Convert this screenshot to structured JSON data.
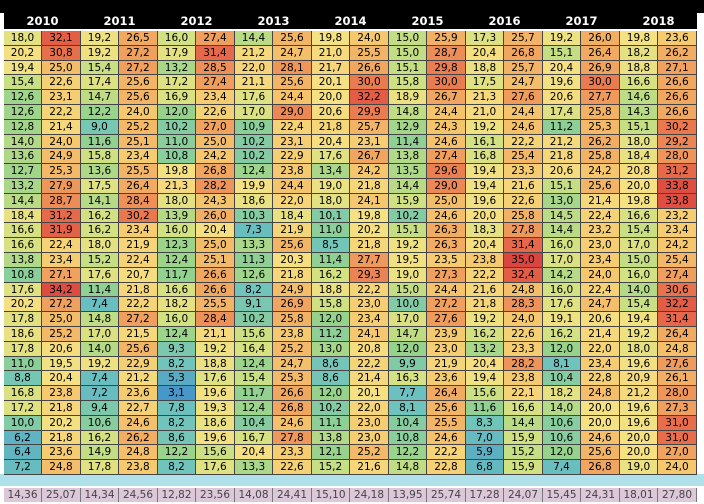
{
  "years": [
    "2010",
    "2011",
    "2012",
    "2013",
    "2014",
    "2015",
    "2016",
    "2017",
    "2018"
  ],
  "rows": [
    [
      [
        "18,0",
        "32,1"
      ],
      [
        "19,2",
        "26,5"
      ],
      [
        "16,0",
        "27,4"
      ],
      [
        "14,4",
        "25,6"
      ],
      [
        "19,8",
        "24,0"
      ],
      [
        "15,0",
        "25,9"
      ],
      [
        "17,3",
        "25,7"
      ],
      [
        "19,2",
        "26,0"
      ],
      [
        "19,8",
        "23,6"
      ]
    ],
    [
      [
        "20,2",
        "30,8"
      ],
      [
        "19,2",
        "27,2"
      ],
      [
        "17,9",
        "31,4"
      ],
      [
        "21,2",
        "24,7"
      ],
      [
        "21,0",
        "25,5"
      ],
      [
        "15,0",
        "28,7"
      ],
      [
        "20,4",
        "26,8"
      ],
      [
        "15,1",
        "26,4"
      ],
      [
        "18,2",
        "26,2"
      ]
    ],
    [
      [
        "19,4",
        "25,0"
      ],
      [
        "15,4",
        "27,2"
      ],
      [
        "13,2",
        "28,5"
      ],
      [
        "22,0",
        "28,1"
      ],
      [
        "21,7",
        "26,6"
      ],
      [
        "15,1",
        "29,8"
      ],
      [
        "18,8",
        "25,7"
      ],
      [
        "20,4",
        "26,9"
      ],
      [
        "18,8",
        "27,1"
      ]
    ],
    [
      [
        "15,4",
        "22,6"
      ],
      [
        "17,4",
        "25,6"
      ],
      [
        "17,2",
        "27,4"
      ],
      [
        "21,1",
        "25,6"
      ],
      [
        "20,1",
        "30,0"
      ],
      [
        "15,8",
        "30,0"
      ],
      [
        "17,5",
        "24,7"
      ],
      [
        "19,6",
        "30,0"
      ],
      [
        "16,6",
        "26,6"
      ]
    ],
    [
      [
        "12,6",
        "23,1"
      ],
      [
        "14,7",
        "25,6"
      ],
      [
        "16,9",
        "23,4"
      ],
      [
        "17,6",
        "24,4"
      ],
      [
        "20,0",
        "32,2"
      ],
      [
        "18,9",
        "26,7"
      ],
      [
        "21,3",
        "27,6"
      ],
      [
        "20,6",
        "27,7"
      ],
      [
        "14,6",
        "26,6"
      ]
    ],
    [
      [
        "12,6",
        "22,2"
      ],
      [
        "12,2",
        "24,0"
      ],
      [
        "12,0",
        "22,6"
      ],
      [
        "17,0",
        "29,0"
      ],
      [
        "20,6",
        "29,9"
      ],
      [
        "14,8",
        "24,4"
      ],
      [
        "21,0",
        "24,4"
      ],
      [
        "17,4",
        "25,8"
      ],
      [
        "14,3",
        "26,6"
      ]
    ],
    [
      [
        "12,8",
        "21,4"
      ],
      [
        "9,0",
        "25,2"
      ],
      [
        "10,2",
        "27,0"
      ],
      [
        "10,9",
        "22,4"
      ],
      [
        "21,8",
        "25,7"
      ],
      [
        "12,9",
        "24,3"
      ],
      [
        "19,2",
        "24,6"
      ],
      [
        "11,2",
        "25,3"
      ],
      [
        "15,1",
        "30,2"
      ]
    ],
    [
      [
        "14,0",
        "24,0"
      ],
      [
        "11,6",
        "25,1"
      ],
      [
        "11,0",
        "25,0"
      ],
      [
        "10,2",
        "23,1"
      ],
      [
        "20,4",
        "23,1"
      ],
      [
        "11,4",
        "24,6"
      ],
      [
        "16,1",
        "22,2"
      ],
      [
        "21,2",
        "26,2"
      ],
      [
        "18,0",
        "29,2"
      ]
    ],
    [
      [
        "13,6",
        "24,9"
      ],
      [
        "15,8",
        "23,4"
      ],
      [
        "10,8",
        "24,2"
      ],
      [
        "10,2",
        "22,9"
      ],
      [
        "17,6",
        "26,7"
      ],
      [
        "13,8",
        "27,4"
      ],
      [
        "16,8",
        "25,4"
      ],
      [
        "21,8",
        "25,8"
      ],
      [
        "18,4",
        "28,0"
      ]
    ],
    [
      [
        "12,7",
        "25,3"
      ],
      [
        "13,6",
        "25,5"
      ],
      [
        "19,8",
        "26,8"
      ],
      [
        "12,4",
        "23,8"
      ],
      [
        "13,4",
        "24,2"
      ],
      [
        "13,5",
        "29,6"
      ],
      [
        "19,4",
        "23,3"
      ],
      [
        "20,6",
        "24,2"
      ],
      [
        "20,8",
        "31,2"
      ]
    ],
    [
      [
        "13,2",
        "27,9"
      ],
      [
        "17,5",
        "26,4"
      ],
      [
        "21,3",
        "28,2"
      ],
      [
        "19,9",
        "24,4"
      ],
      [
        "19,0",
        "21,8"
      ],
      [
        "14,4",
        "29,0"
      ],
      [
        "19,4",
        "21,6"
      ],
      [
        "15,1",
        "25,6"
      ],
      [
        "20,0",
        "33,8"
      ]
    ],
    [
      [
        "14,4",
        "28,7"
      ],
      [
        "14,1",
        "28,4"
      ],
      [
        "18,0",
        "24,3"
      ],
      [
        "18,6",
        "22,0"
      ],
      [
        "18,0",
        "24,1"
      ],
      [
        "15,9",
        "25,0"
      ],
      [
        "19,6",
        "22,6"
      ],
      [
        "13,0",
        "21,4"
      ],
      [
        "19,8",
        "33,8"
      ]
    ],
    [
      [
        "18,4",
        "31,2"
      ],
      [
        "16,2",
        "30,2"
      ],
      [
        "13,9",
        "26,0"
      ],
      [
        "10,3",
        "18,4"
      ],
      [
        "10,1",
        "19,8"
      ],
      [
        "10,2",
        "24,6"
      ],
      [
        "20,0",
        "25,8"
      ],
      [
        "14,5",
        "22,4"
      ],
      [
        "16,6",
        "23,2"
      ]
    ],
    [
      [
        "16,6",
        "31,9"
      ],
      [
        "16,2",
        "23,4"
      ],
      [
        "16,0",
        "20,4"
      ],
      [
        "7,3",
        "21,9"
      ],
      [
        "11,0",
        "20,2"
      ],
      [
        "15,1",
        "26,3"
      ],
      [
        "18,3",
        "27,8"
      ],
      [
        "14,4",
        "23,2"
      ],
      [
        "15,4",
        "23,4"
      ]
    ],
    [
      [
        "16,6",
        "22,4"
      ],
      [
        "18,0",
        "21,9"
      ],
      [
        "12,3",
        "25,0"
      ],
      [
        "13,3",
        "25,6"
      ],
      [
        "8,5",
        "21,8"
      ],
      [
        "19,2",
        "26,3"
      ],
      [
        "20,4",
        "31,4"
      ],
      [
        "16,0",
        "23,0"
      ],
      [
        "17,0",
        "24,2"
      ]
    ],
    [
      [
        "13,8",
        "23,4"
      ],
      [
        "15,2",
        "22,4"
      ],
      [
        "12,4",
        "25,1"
      ],
      [
        "11,3",
        "20,3"
      ],
      [
        "11,4",
        "27,7"
      ],
      [
        "19,5",
        "23,5"
      ],
      [
        "23,8",
        "35,0"
      ],
      [
        "17,0",
        "23,4"
      ],
      [
        "15,0",
        "25,4"
      ]
    ],
    [
      [
        "10,8",
        "27,1"
      ],
      [
        "17,6",
        "20,7"
      ],
      [
        "11,7",
        "26,6"
      ],
      [
        "12,6",
        "21,8"
      ],
      [
        "16,2",
        "29,3"
      ],
      [
        "19,0",
        "27,3"
      ],
      [
        "22,2",
        "32,4"
      ],
      [
        "14,2",
        "24,0"
      ],
      [
        "16,0",
        "27,4"
      ]
    ],
    [
      [
        "17,6",
        "34,2"
      ],
      [
        "11,4",
        "21,8"
      ],
      [
        "16,6",
        "26,6"
      ],
      [
        "8,2",
        "24,9"
      ],
      [
        "18,8",
        "22,2"
      ],
      [
        "15,0",
        "24,4"
      ],
      [
        "21,6",
        "24,8"
      ],
      [
        "16,0",
        "22,4"
      ],
      [
        "14,0",
        "30,6"
      ]
    ],
    [
      [
        "20,2",
        "27,2"
      ],
      [
        "7,4",
        "22,2"
      ],
      [
        "18,2",
        "25,5"
      ],
      [
        "9,1",
        "26,9"
      ],
      [
        "15,8",
        "23,0"
      ],
      [
        "10,0",
        "27,2"
      ],
      [
        "21,8",
        "28,3"
      ],
      [
        "17,6",
        "24,7"
      ],
      [
        "15,4",
        "32,2"
      ]
    ],
    [
      [
        "17,8",
        "25,0"
      ],
      [
        "14,8",
        "27,2"
      ],
      [
        "16,0",
        "28,4"
      ],
      [
        "10,2",
        "25,8"
      ],
      [
        "12,0",
        "23,4"
      ],
      [
        "17,0",
        "27,6"
      ],
      [
        "19,2",
        "24,0"
      ],
      [
        "19,1",
        "20,6"
      ],
      [
        "19,4",
        "31,4"
      ]
    ],
    [
      [
        "18,6",
        "25,2"
      ],
      [
        "17,0",
        "21,5"
      ],
      [
        "12,4",
        "21,1"
      ],
      [
        "15,6",
        "23,8"
      ],
      [
        "11,2",
        "24,1"
      ],
      [
        "14,7",
        "23,9"
      ],
      [
        "16,2",
        "22,6"
      ],
      [
        "16,2",
        "21,4"
      ],
      [
        "19,2",
        "26,4"
      ]
    ],
    [
      [
        "17,8",
        "20,6"
      ],
      [
        "14,0",
        "25,6"
      ],
      [
        "9,3",
        "19,2"
      ],
      [
        "16,4",
        "25,2"
      ],
      [
        "13,0",
        "20,8"
      ],
      [
        "12,0",
        "23,0"
      ],
      [
        "13,2",
        "23,3"
      ],
      [
        "12,0",
        "22,0"
      ],
      [
        "18,0",
        "24,8"
      ]
    ],
    [
      [
        "11,0",
        "19,5"
      ],
      [
        "19,2",
        "22,9"
      ],
      [
        "8,2",
        "18,8"
      ],
      [
        "12,4",
        "24,7"
      ],
      [
        "8,6",
        "22,2"
      ],
      [
        "9,9",
        "21,9"
      ],
      [
        "20,4",
        "28,2"
      ],
      [
        "8,1",
        "23,4"
      ],
      [
        "19,6",
        "27,6"
      ]
    ],
    [
      [
        "8,8",
        "20,4"
      ],
      [
        "7,4",
        "21,2"
      ],
      [
        "5,3",
        "17,6"
      ],
      [
        "15,4",
        "25,3"
      ],
      [
        "8,6",
        "21,4"
      ],
      [
        "16,3",
        "23,6"
      ],
      [
        "19,4",
        "23,8"
      ],
      [
        "10,4",
        "22,8"
      ],
      [
        "20,9",
        "26,1"
      ]
    ],
    [
      [
        "16,8",
        "23,8"
      ],
      [
        "7,2",
        "23,6"
      ],
      [
        "3,1",
        "19,6"
      ],
      [
        "11,7",
        "26,6"
      ],
      [
        "12,0",
        "20,1"
      ],
      [
        "7,7",
        "26,4"
      ],
      [
        "15,6",
        "22,1"
      ],
      [
        "18,2",
        "24,8"
      ],
      [
        "21,2",
        "28,0"
      ]
    ],
    [
      [
        "17,2",
        "21,8"
      ],
      [
        "9,4",
        "22,7"
      ],
      [
        "7,8",
        "19,3"
      ],
      [
        "12,4",
        "26,8"
      ],
      [
        "10,2",
        "22,0"
      ],
      [
        "8,1",
        "25,6"
      ],
      [
        "11,6",
        "16,6"
      ],
      [
        "14,0",
        "20,0"
      ],
      [
        "19,6",
        "27,3"
      ]
    ],
    [
      [
        "10,0",
        "20,2"
      ],
      [
        "10,6",
        "24,6"
      ],
      [
        "8,2",
        "18,6"
      ],
      [
        "10,4",
        "24,6"
      ],
      [
        "11,1",
        "23,0"
      ],
      [
        "10,4",
        "25,5"
      ],
      [
        "8,3",
        "14,4"
      ],
      [
        "10,6",
        "20,0"
      ],
      [
        "19,6",
        "31,0"
      ]
    ],
    [
      [
        "6,2",
        "21,8"
      ],
      [
        "16,2",
        "26,2"
      ],
      [
        "8,6",
        "19,6"
      ],
      [
        "16,7",
        "27,8"
      ],
      [
        "13,8",
        "23,0"
      ],
      [
        "10,8",
        "24,6"
      ],
      [
        "7,0",
        "15,9"
      ],
      [
        "10,6",
        "24,6"
      ],
      [
        "20,0",
        "31,0"
      ]
    ],
    [
      [
        "6,4",
        "23,6"
      ],
      [
        "14,9",
        "24,8"
      ],
      [
        "12,2",
        "15,6"
      ],
      [
        "20,4",
        "23,3"
      ],
      [
        "12,1",
        "25,2"
      ],
      [
        "12,2",
        "22,2"
      ],
      [
        "5,9",
        "15,2"
      ],
      [
        "12,0",
        "25,6"
      ],
      [
        "20,0",
        "27,0"
      ]
    ],
    [
      [
        "7,2",
        "24,8"
      ],
      [
        "17,8",
        "23,8"
      ],
      [
        "8,2",
        "17,6"
      ],
      [
        "13,3",
        "22,6"
      ],
      [
        "15,2",
        "21,6"
      ],
      [
        "14,8",
        "22,8"
      ],
      [
        "6,8",
        "15,9"
      ],
      [
        "7,4",
        "26,8"
      ],
      [
        "19,0",
        "24,0"
      ]
    ]
  ],
  "averages": [
    [
      "14,36",
      "25,07"
    ],
    [
      "14,34",
      "24,56"
    ],
    [
      "12,82",
      "23,56"
    ],
    [
      "14,08",
      "24,41"
    ],
    [
      "15,10",
      "24,18"
    ],
    [
      "13,95",
      "25,74"
    ],
    [
      "17,28",
      "24,07"
    ],
    [
      "15,45",
      "24,31"
    ],
    [
      "18,01",
      "27,80"
    ]
  ]
}
